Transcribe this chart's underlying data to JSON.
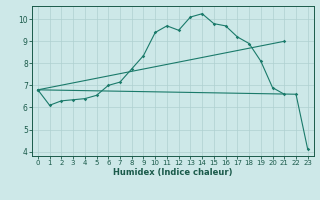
{
  "xlabel": "Humidex (Indice chaleur)",
  "bg_color": "#cde8e8",
  "grid_color": "#afd0d0",
  "line_color": "#1a7a6a",
  "xlim": [
    -0.5,
    23.5
  ],
  "ylim": [
    3.8,
    10.6
  ],
  "xticks": [
    0,
    1,
    2,
    3,
    4,
    5,
    6,
    7,
    8,
    9,
    10,
    11,
    12,
    13,
    14,
    15,
    16,
    17,
    18,
    19,
    20,
    21,
    22,
    23
  ],
  "yticks": [
    4,
    5,
    6,
    7,
    8,
    9,
    10
  ],
  "line1_x": [
    0,
    1,
    2,
    3,
    4,
    5,
    6,
    7,
    8,
    9,
    10,
    11,
    12,
    13,
    14,
    15,
    16,
    17,
    18,
    19,
    20,
    21
  ],
  "line1_y": [
    6.8,
    6.1,
    6.3,
    6.35,
    6.4,
    6.55,
    7.0,
    7.15,
    7.75,
    8.35,
    9.4,
    9.7,
    9.5,
    10.1,
    10.25,
    9.8,
    9.7,
    9.2,
    8.9,
    8.1,
    6.9,
    6.6
  ],
  "line2_x": [
    0,
    21
  ],
  "line2_y": [
    6.8,
    9.0
  ],
  "line3_x": [
    0,
    22,
    23
  ],
  "line3_y": [
    6.8,
    6.6,
    4.1
  ]
}
